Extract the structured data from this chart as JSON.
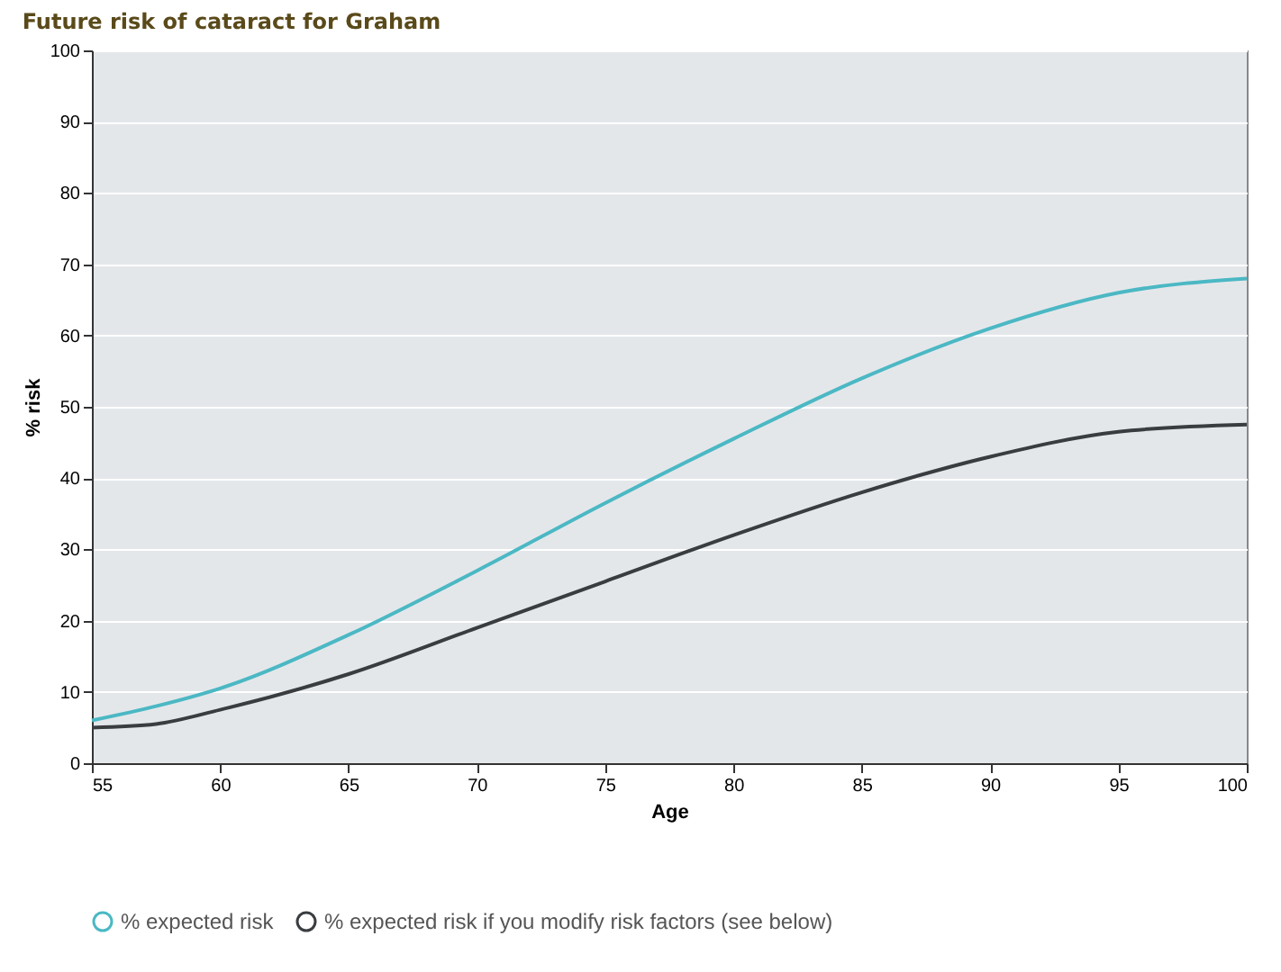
{
  "chart_data": {
    "type": "line",
    "title": "Future risk of cataract for Graham",
    "xlabel": "Age",
    "ylabel": "% risk",
    "x": [
      55,
      57.5,
      60,
      65,
      70,
      75,
      80,
      85,
      90,
      95,
      100
    ],
    "series": [
      {
        "name": "% expected risk",
        "color": "#4bb8c4",
        "values": [
          6,
          8,
          10.5,
          18,
          27,
          36.5,
          45.5,
          54,
          61,
          66,
          68
        ]
      },
      {
        "name": "% expected risk if you modify risk factors (see below)",
        "color": "#3a3d40",
        "values": [
          5,
          5.5,
          7.5,
          12.5,
          19,
          25.5,
          32,
          38,
          43,
          46.5,
          47.5
        ]
      }
    ],
    "xlim": [
      55,
      100
    ],
    "xticks": [
      55,
      60,
      65,
      70,
      75,
      80,
      85,
      90,
      95,
      100
    ],
    "ylim": [
      0,
      100
    ],
    "yticks": [
      0,
      10,
      20,
      30,
      40,
      50,
      60,
      70,
      80,
      90,
      100
    ],
    "grid": "y",
    "legend": "bottom",
    "marker": "none",
    "line_style": "solid"
  }
}
